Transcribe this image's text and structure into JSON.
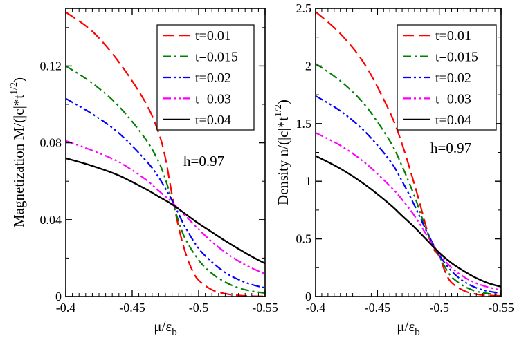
{
  "chart_data": [
    {
      "type": "line",
      "xlabel": "μ/ε_b",
      "ylabel": "Magnetization M/(|c|*t^1/2)",
      "xlim": [
        -0.4,
        -0.55
      ],
      "ylim": [
        0,
        0.15
      ],
      "x_ticks": [
        "-0.4",
        "-0.45",
        "-0.5",
        "-0.55"
      ],
      "y_ticks": [
        "0",
        "0.04",
        "0.08",
        "0.12"
      ],
      "y_tick_values": [
        0,
        0.04,
        0.08,
        0.12
      ],
      "annotation": "h=0.97",
      "legend_position": "top-right",
      "series": [
        {
          "name": "t=0.01",
          "color": "#ff0000",
          "style": "dash",
          "x": [
            -0.4,
            -0.42,
            -0.44,
            -0.46,
            -0.47,
            -0.475,
            -0.48,
            -0.485,
            -0.49,
            -0.495,
            -0.5,
            -0.51,
            -0.52,
            -0.53,
            -0.54,
            -0.55
          ],
          "y": [
            0.148,
            0.138,
            0.122,
            0.101,
            0.085,
            0.072,
            0.053,
            0.036,
            0.023,
            0.014,
            0.0085,
            0.0035,
            0.0015,
            0.0006,
            0.0002,
            0.0001
          ]
        },
        {
          "name": "t=0.015",
          "color": "#008000",
          "style": "dashdot",
          "x": [
            -0.4,
            -0.42,
            -0.44,
            -0.46,
            -0.47,
            -0.475,
            -0.48,
            -0.485,
            -0.49,
            -0.5,
            -0.51,
            -0.52,
            -0.53,
            -0.54,
            -0.55
          ],
          "y": [
            0.12,
            0.111,
            0.099,
            0.082,
            0.07,
            0.061,
            0.05,
            0.039,
            0.03,
            0.019,
            0.012,
            0.0075,
            0.0045,
            0.0028,
            0.0018
          ]
        },
        {
          "name": "t=0.02",
          "color": "#0000ff",
          "style": "dashdotdot",
          "x": [
            -0.4,
            -0.42,
            -0.44,
            -0.46,
            -0.47,
            -0.48,
            -0.485,
            -0.49,
            -0.5,
            -0.51,
            -0.52,
            -0.53,
            -0.54,
            -0.55
          ],
          "y": [
            0.103,
            0.095,
            0.085,
            0.071,
            0.062,
            0.05,
            0.043,
            0.036,
            0.025,
            0.018,
            0.0125,
            0.0088,
            0.0062,
            0.0045
          ]
        },
        {
          "name": "t=0.03",
          "color": "#ff00ff",
          "style": "dashdotdot",
          "x": [
            -0.4,
            -0.42,
            -0.44,
            -0.46,
            -0.47,
            -0.48,
            -0.49,
            -0.5,
            -0.51,
            -0.52,
            -0.53,
            -0.54,
            -0.55
          ],
          "y": [
            0.081,
            0.076,
            0.07,
            0.061,
            0.055,
            0.049,
            0.042,
            0.035,
            0.0285,
            0.023,
            0.0185,
            0.0148,
            0.0118
          ]
        },
        {
          "name": "t=0.04",
          "color": "#000000",
          "style": "solid",
          "x": [
            -0.4,
            -0.42,
            -0.44,
            -0.46,
            -0.47,
            -0.48,
            -0.49,
            -0.5,
            -0.51,
            -0.52,
            -0.53,
            -0.54,
            -0.55
          ],
          "y": [
            0.072,
            0.068,
            0.063,
            0.056,
            0.052,
            0.048,
            0.043,
            0.038,
            0.0335,
            0.029,
            0.0248,
            0.0208,
            0.0172
          ]
        }
      ]
    },
    {
      "type": "line",
      "xlabel": "μ/ε_b",
      "ylabel": "Density n/(|c|*t^1/2)",
      "xlim": [
        -0.4,
        -0.55
      ],
      "ylim": [
        0,
        2.5
      ],
      "x_ticks": [
        "-0.4",
        "-0.45",
        "-0.5",
        "-0.55"
      ],
      "y_ticks": [
        "0",
        "0.5",
        "1",
        "1.5",
        "2",
        "2.5"
      ],
      "y_tick_values": [
        0,
        0.5,
        1,
        1.5,
        2,
        2.5
      ],
      "annotation": "h=0.97",
      "legend_position": "top-right",
      "series": [
        {
          "name": "t=0.01",
          "color": "#ff0000",
          "style": "dash",
          "x": [
            -0.4,
            -0.42,
            -0.44,
            -0.46,
            -0.47,
            -0.48,
            -0.485,
            -0.49,
            -0.495,
            -0.5,
            -0.505,
            -0.51,
            -0.52,
            -0.53,
            -0.54,
            -0.55
          ],
          "y": [
            2.47,
            2.28,
            2.01,
            1.6,
            1.32,
            0.97,
            0.78,
            0.58,
            0.42,
            0.35,
            0.21,
            0.12,
            0.05,
            0.02,
            0.01,
            0.005
          ]
        },
        {
          "name": "t=0.015",
          "color": "#008000",
          "style": "dashdot",
          "x": [
            -0.4,
            -0.42,
            -0.44,
            -0.46,
            -0.47,
            -0.48,
            -0.49,
            -0.5,
            -0.505,
            -0.51,
            -0.52,
            -0.53,
            -0.54,
            -0.55
          ],
          "y": [
            2.02,
            1.87,
            1.66,
            1.35,
            1.13,
            0.87,
            0.57,
            0.35,
            0.25,
            0.17,
            0.09,
            0.045,
            0.025,
            0.015
          ]
        },
        {
          "name": "t=0.02",
          "color": "#0000ff",
          "style": "dashdotdot",
          "x": [
            -0.4,
            -0.42,
            -0.44,
            -0.46,
            -0.47,
            -0.48,
            -0.49,
            -0.5,
            -0.51,
            -0.52,
            -0.53,
            -0.54,
            -0.55
          ],
          "y": [
            1.74,
            1.61,
            1.43,
            1.18,
            1.0,
            0.79,
            0.56,
            0.36,
            0.22,
            0.13,
            0.075,
            0.045,
            0.03
          ]
        },
        {
          "name": "t=0.03",
          "color": "#ff00ff",
          "style": "dashdotdot",
          "x": [
            -0.4,
            -0.42,
            -0.44,
            -0.46,
            -0.47,
            -0.48,
            -0.49,
            -0.5,
            -0.51,
            -0.52,
            -0.53,
            -0.54,
            -0.55
          ],
          "y": [
            1.42,
            1.31,
            1.16,
            0.96,
            0.84,
            0.7,
            0.53,
            0.37,
            0.25,
            0.17,
            0.115,
            0.08,
            0.055
          ]
        },
        {
          "name": "t=0.04",
          "color": "#000000",
          "style": "solid",
          "x": [
            -0.4,
            -0.42,
            -0.44,
            -0.46,
            -0.47,
            -0.48,
            -0.49,
            -0.5,
            -0.51,
            -0.52,
            -0.53,
            -0.54,
            -0.55
          ],
          "y": [
            1.22,
            1.11,
            0.97,
            0.8,
            0.7,
            0.6,
            0.49,
            0.38,
            0.29,
            0.22,
            0.16,
            0.115,
            0.085
          ]
        }
      ]
    }
  ]
}
